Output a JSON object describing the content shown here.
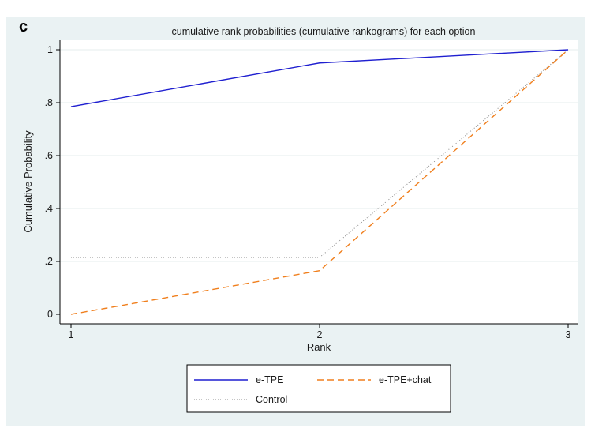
{
  "panel_label": "c",
  "chart_data": {
    "type": "line",
    "title": "cumulative rank probabilities (cumulative rankograms) for each option",
    "xlabel": "Rank",
    "ylabel": "Cumulative Probability",
    "x": [
      1,
      2,
      3
    ],
    "x_tick_labels": [
      "1",
      "2",
      "3"
    ],
    "xlim": [
      1,
      3
    ],
    "ylim": [
      0,
      1
    ],
    "y_ticks": [
      0,
      0.2,
      0.4,
      0.6,
      0.8,
      1
    ],
    "y_tick_labels": [
      "0",
      ".2",
      ".4",
      ".6",
      ".8",
      "1"
    ],
    "grid": "horizontal",
    "legend_position": "bottom",
    "series": [
      {
        "name": "e-TPE",
        "values": [
          0.785,
          0.95,
          1.0
        ],
        "color": "#1f1fd0",
        "style": "solid"
      },
      {
        "name": "e-TPE+chat",
        "values": [
          0.0,
          0.165,
          1.0
        ],
        "color": "#f07f1d",
        "style": "dashed"
      },
      {
        "name": "Control",
        "values": [
          0.215,
          0.215,
          1.0
        ],
        "color": "#8a8a8a",
        "style": "dotted"
      }
    ]
  }
}
